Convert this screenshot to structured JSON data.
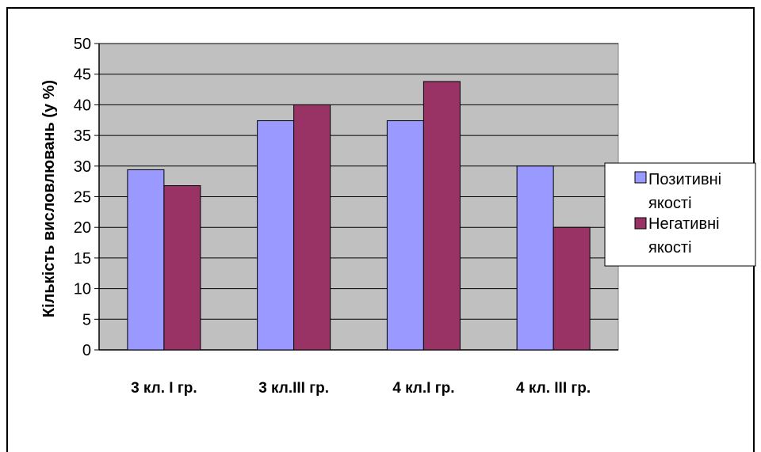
{
  "chart_data": {
    "type": "bar",
    "categories": [
      "3 кл. І гр.",
      "3 кл.ІІІ гр.",
      "4 кл.І гр.",
      "4 кл. ІІІ гр."
    ],
    "series": [
      {
        "name_lines": [
          "Позитивні",
          "якості"
        ],
        "values": [
          29.4,
          37.4,
          37.4,
          30
        ],
        "color": "#9999ff"
      },
      {
        "name_lines": [
          "Негативні",
          "якості"
        ],
        "values": [
          26.8,
          40,
          43.8,
          20
        ],
        "color": "#993366"
      }
    ],
    "title": "",
    "xlabel": "",
    "ylabel": "Кількість висловлювань (у %)",
    "ylim": [
      0,
      50
    ],
    "yticks": [
      0,
      5,
      10,
      15,
      20,
      25,
      30,
      35,
      40,
      45,
      50
    ],
    "grid": true,
    "plot_background": "#c0c0c0",
    "legend_position": "right"
  }
}
